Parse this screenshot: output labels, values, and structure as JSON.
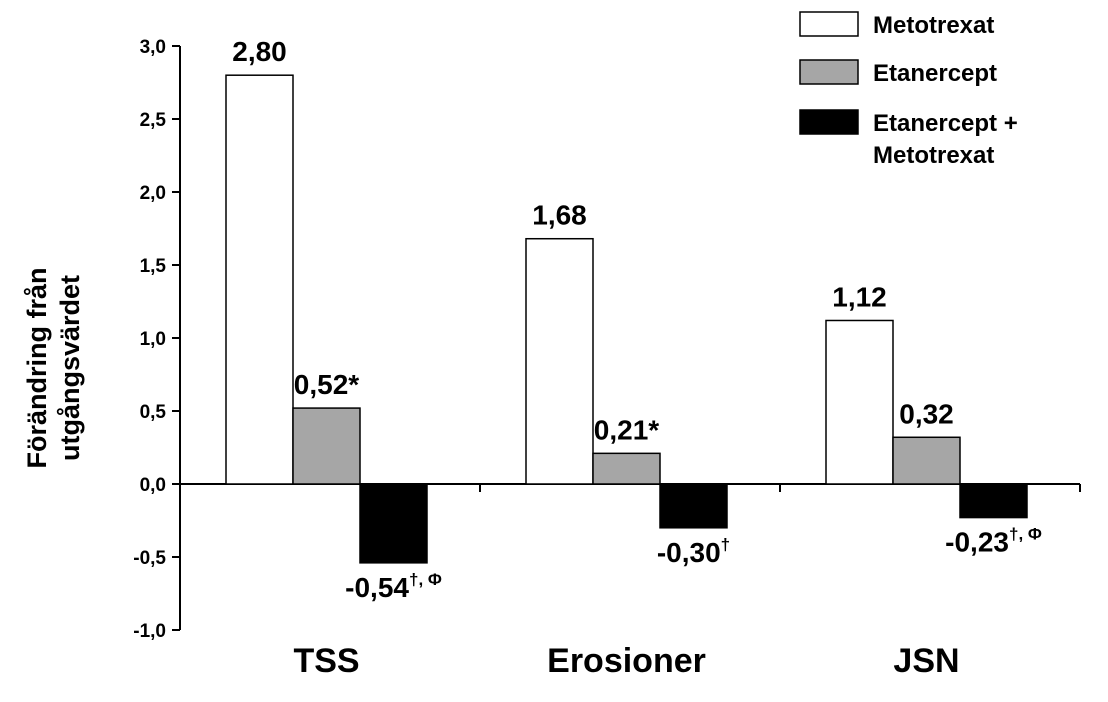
{
  "chart_data": {
    "type": "bar",
    "ylabel": [
      "Förändring från",
      "utgångsvärdet"
    ],
    "ylim": [
      -1.0,
      3.0
    ],
    "yticks": [
      {
        "v": 3.0,
        "label": "3,0"
      },
      {
        "v": 2.5,
        "label": "2,5"
      },
      {
        "v": 2.0,
        "label": "2,0"
      },
      {
        "v": 1.5,
        "label": "1,5"
      },
      {
        "v": 1.0,
        "label": "1,0"
      },
      {
        "v": 0.5,
        "label": "0,5"
      },
      {
        "v": 0.0,
        "label": "0,0"
      },
      {
        "v": -0.5,
        "label": "-0,5"
      },
      {
        "v": -1.0,
        "label": "-1,0"
      }
    ],
    "categories": [
      "TSS",
      "Erosioner",
      "JSN"
    ],
    "series": [
      {
        "name": "Metotrexat",
        "legend": [
          "Metotrexat"
        ],
        "color": "#ffffff",
        "values": [
          2.8,
          1.68,
          1.12
        ],
        "labels": [
          {
            "text": "2,80",
            "sup": ""
          },
          {
            "text": "1,68",
            "sup": ""
          },
          {
            "text": "1,12",
            "sup": ""
          }
        ]
      },
      {
        "name": "Etanercept",
        "legend": [
          "Etanercept"
        ],
        "color": "#a6a6a6",
        "values": [
          0.52,
          0.21,
          0.32
        ],
        "labels": [
          {
            "text": "0,52*",
            "sup": ""
          },
          {
            "text": "0,21*",
            "sup": ""
          },
          {
            "text": "0,32",
            "sup": ""
          }
        ]
      },
      {
        "name": "Etanercept + Metotrexat",
        "legend": [
          "Etanercept +",
          "Metotrexat"
        ],
        "color": "#000000",
        "values": [
          -0.54,
          -0.3,
          -0.23
        ],
        "labels": [
          {
            "text": "-0,54",
            "sup": "†, Φ"
          },
          {
            "text": "-0,30",
            "sup": "†"
          },
          {
            "text": "-0,23",
            "sup": "†, Φ"
          }
        ]
      }
    ],
    "grid": false,
    "legend_position": "top-right"
  }
}
